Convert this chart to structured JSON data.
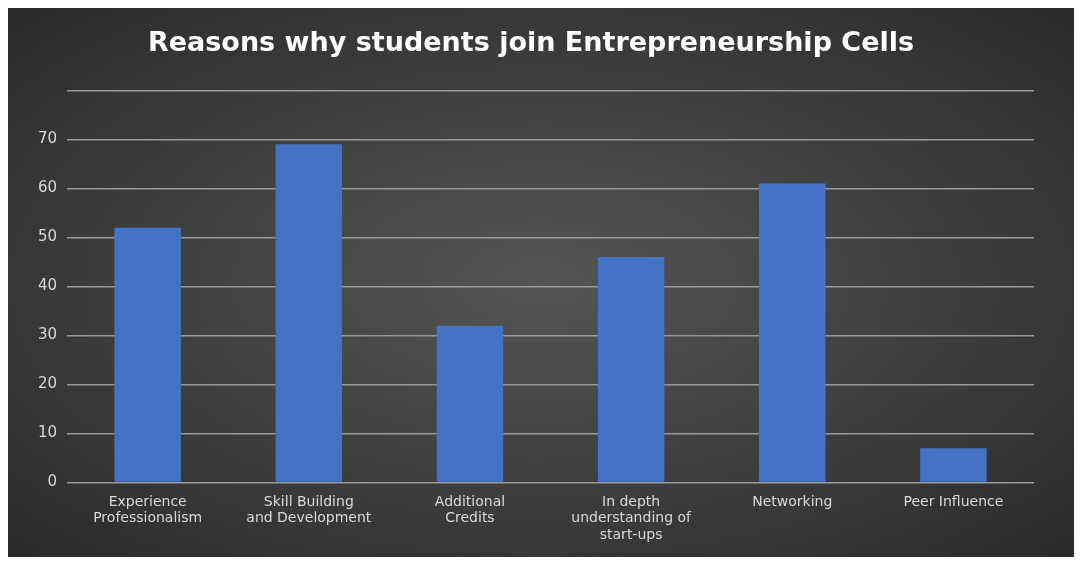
{
  "chart_data": {
    "type": "bar",
    "title": "Reasons why students join Entrepreneurship Cells",
    "categories": [
      "Experience Professionalism",
      "Skill Building and Development",
      "Additional Credits",
      "In depth understanding of start-ups",
      "Networking",
      "Peer Influence"
    ],
    "values": [
      52,
      69,
      32,
      46,
      61,
      7
    ],
    "color": "#4472c4",
    "ylim": [
      0,
      80
    ],
    "yticks": [
      0,
      10,
      20,
      30,
      40,
      50,
      60,
      70,
      {
        "value": 80,
        "label": null
      }
    ],
    "grid": "y"
  }
}
